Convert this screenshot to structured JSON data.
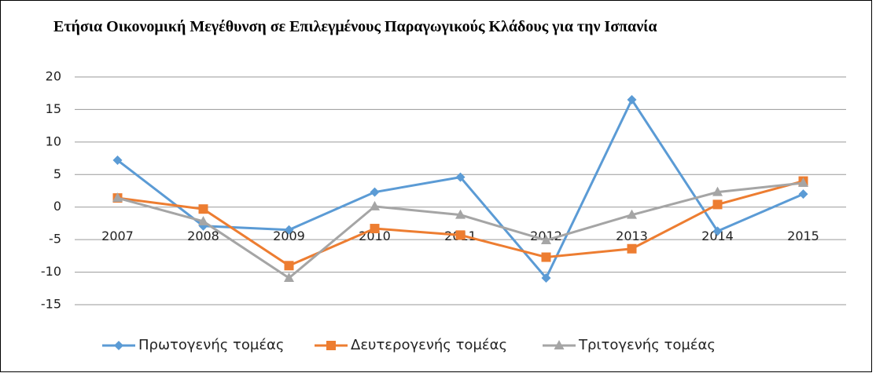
{
  "chart_data": {
    "type": "line",
    "title": "Ετήσια Οικονομική Μεγέθυνση σε Επιλεγμένους Παραγωγικούς Κλάδους για την Ισπανία",
    "categories": [
      "2007",
      "2008",
      "2009",
      "2010",
      "2011",
      "2012",
      "2013",
      "2014",
      "2015"
    ],
    "series": [
      {
        "name": "Πρωτογενής τομέας",
        "color": "#5b9bd5",
        "marker": "diamond",
        "values": [
          7.2,
          -2.9,
          -3.5,
          2.3,
          4.6,
          -10.9,
          16.5,
          -3.7,
          2.0
        ]
      },
      {
        "name": "Δευτερογενής τομέας",
        "color": "#ed7d31",
        "marker": "square",
        "values": [
          1.4,
          -0.3,
          -9.0,
          -3.3,
          -4.3,
          -7.7,
          -6.4,
          0.4,
          4.0
        ]
      },
      {
        "name": "Τριτογενής τομέας",
        "color": "#a5a5a5",
        "marker": "triangle",
        "values": [
          1.4,
          -2.2,
          -10.9,
          0.1,
          -1.2,
          -5.1,
          -1.2,
          2.3,
          3.7
        ]
      }
    ],
    "ylim": [
      -15,
      20
    ],
    "yticks": [
      -15,
      -10,
      -5,
      0,
      5,
      10,
      15,
      20
    ],
    "grid": true,
    "legend": "bottom"
  }
}
